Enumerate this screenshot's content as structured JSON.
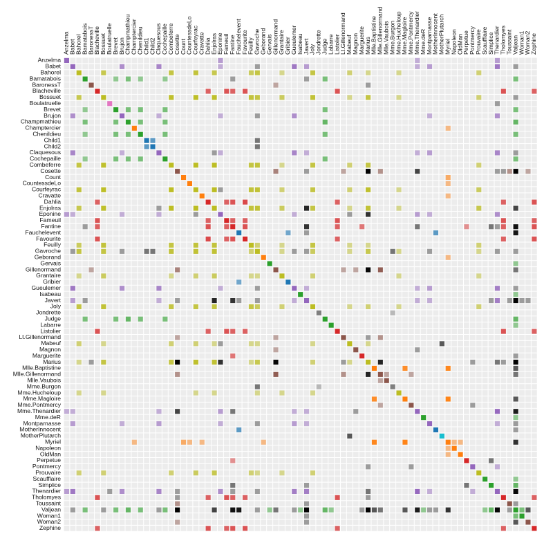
{
  "chart_data": {
    "type": "matrix",
    "categories": [
      "Anzelma",
      "Babet",
      "Bahorel",
      "Bamatabois",
      "BaronessT",
      "Blacheville",
      "Bossuet",
      "Boulatruelle",
      "Brevet",
      "Brujon",
      "Champmathieu",
      "Champtercier",
      "Chenildieu",
      "Child1",
      "Child2",
      "Claquesous",
      "Cochepaille",
      "Combeferre",
      "Cosette",
      "Count",
      "CountessdeLo",
      "Courfeyrac",
      "Cravatte",
      "Dahlia",
      "Enjolras",
      "Eponine",
      "Fameuil",
      "Fantine",
      "Fauchelevent",
      "Favourite",
      "Feuilly",
      "Gavroche",
      "Geborand",
      "Gervais",
      "Gillenormand",
      "Grantaire",
      "Gribier",
      "Gueulemer",
      "Isabeau",
      "Javert",
      "Joly",
      "Jondrette",
      "Judge",
      "Labarre",
      "Listolier",
      "Lt.Gillenormand",
      "Mabeuf",
      "Magnon",
      "Marguerite",
      "Marius",
      "Mlle.Baptistine",
      "Mlle.Gillenormand",
      "Mlle.Vaubois",
      "Mme.Burgon",
      "Mme.Hucheloup",
      "Mme.Magloire",
      "Mme.Pontmercy",
      "Mme.Thenardier",
      "Mme.deR",
      "Montparnasse",
      "MotherInnocent",
      "MotherPlutarch",
      "Myriel",
      "Napoleon",
      "OldMan",
      "Perpetue",
      "Pontmercy",
      "Prouvaire",
      "Scaufflaire",
      "Simplice",
      "Thenardier",
      "Tholomyes",
      "Toussaint",
      "Valjean",
      "Woman1",
      "Woman2",
      "Zephine"
    ],
    "groups": [
      4,
      4,
      8,
      2,
      5,
      3,
      8,
      6,
      2,
      4,
      2,
      1,
      2,
      10,
      10,
      4,
      2,
      8,
      5,
      1,
      1,
      8,
      1,
      3,
      8,
      4,
      3,
      3,
      0,
      3,
      8,
      8,
      1,
      2,
      5,
      8,
      0,
      4,
      2,
      4,
      8,
      7,
      2,
      2,
      3,
      5,
      8,
      5,
      3,
      8,
      1,
      5,
      5,
      7,
      8,
      1,
      5,
      4,
      2,
      4,
      0,
      9,
      1,
      1,
      1,
      3,
      4,
      8,
      2,
      2,
      4,
      3,
      5,
      2,
      2,
      5,
      3
    ],
    "colors": [
      "#1f77b4",
      "#ff7f0e",
      "#2ca02c",
      "#d62728",
      "#9467bd",
      "#8c564b",
      "#e377c2",
      "#7f7f7f",
      "#bcbd22",
      "#17becf",
      "#1f77b4"
    ],
    "cross_color": "#000000",
    "links": [
      [
        "Napoleon",
        "Myriel",
        1
      ],
      [
        "Mlle.Baptistine",
        "Myriel",
        8
      ],
      [
        "Mme.Magloire",
        "Myriel",
        10
      ],
      [
        "Mme.Magloire",
        "Mlle.Baptistine",
        6
      ],
      [
        "CountessdeLo",
        "Myriel",
        1
      ],
      [
        "Geborand",
        "Myriel",
        1
      ],
      [
        "Champtercier",
        "Myriel",
        1
      ],
      [
        "Cravatte",
        "Myriel",
        1
      ],
      [
        "Count",
        "Myriel",
        2
      ],
      [
        "OldMan",
        "Myriel",
        1
      ],
      [
        "Valjean",
        "Labarre",
        1
      ],
      [
        "Valjean",
        "Mme.Magloire",
        3
      ],
      [
        "Valjean",
        "Mlle.Baptistine",
        3
      ],
      [
        "Valjean",
        "Myriel",
        5
      ],
      [
        "Marguerite",
        "Valjean",
        1
      ],
      [
        "Mme.deR",
        "Valjean",
        1
      ],
      [
        "Isabeau",
        "Valjean",
        1
      ],
      [
        "Gervais",
        "Valjean",
        1
      ],
      [
        "Listolier",
        "Tholomyes",
        4
      ],
      [
        "Fameuil",
        "Tholomyes",
        4
      ],
      [
        "Fameuil",
        "Listolier",
        4
      ],
      [
        "Blacheville",
        "Tholomyes",
        4
      ],
      [
        "Blacheville",
        "Listolier",
        4
      ],
      [
        "Blacheville",
        "Fameuil",
        4
      ],
      [
        "Favourite",
        "Tholomyes",
        3
      ],
      [
        "Favourite",
        "Listolier",
        3
      ],
      [
        "Favourite",
        "Fameuil",
        3
      ],
      [
        "Favourite",
        "Blacheville",
        4
      ],
      [
        "Dahlia",
        "Tholomyes",
        3
      ],
      [
        "Dahlia",
        "Listolier",
        3
      ],
      [
        "Dahlia",
        "Fameuil",
        3
      ],
      [
        "Dahlia",
        "Blacheville",
        3
      ],
      [
        "Dahlia",
        "Favourite",
        5
      ],
      [
        "Zephine",
        "Tholomyes",
        3
      ],
      [
        "Zephine",
        "Listolier",
        3
      ],
      [
        "Zephine",
        "Fameuil",
        3
      ],
      [
        "Zephine",
        "Blacheville",
        3
      ],
      [
        "Zephine",
        "Favourite",
        4
      ],
      [
        "Zephine",
        "Dahlia",
        4
      ],
      [
        "Fantine",
        "Tholomyes",
        3
      ],
      [
        "Fantine",
        "Listolier",
        3
      ],
      [
        "Fantine",
        "Fameuil",
        3
      ],
      [
        "Fantine",
        "Blacheville",
        3
      ],
      [
        "Fantine",
        "Favourite",
        4
      ],
      [
        "Fantine",
        "Dahlia",
        4
      ],
      [
        "Fantine",
        "Zephine",
        4
      ],
      [
        "Fantine",
        "Marguerite",
        2
      ],
      [
        "Fantine",
        "Valjean",
        9
      ],
      [
        "Mme.Thenardier",
        "Fantine",
        2
      ],
      [
        "Mme.Thenardier",
        "Valjean",
        7
      ],
      [
        "Thenardier",
        "Mme.Thenardier",
        13
      ],
      [
        "Thenardier",
        "Fantine",
        1
      ],
      [
        "Thenardier",
        "Valjean",
        12
      ],
      [
        "Cosette",
        "Mme.Thenardier",
        4
      ],
      [
        "Cosette",
        "Valjean",
        31
      ],
      [
        "Cosette",
        "Tholomyes",
        1
      ],
      [
        "Cosette",
        "Thenardier",
        1
      ],
      [
        "Javert",
        "Valjean",
        17
      ],
      [
        "Javert",
        "Fantine",
        5
      ],
      [
        "Javert",
        "Thenardier",
        5
      ],
      [
        "Javert",
        "Mme.Thenardier",
        1
      ],
      [
        "Javert",
        "Cosette",
        1
      ],
      [
        "Fauchelevent",
        "Valjean",
        8
      ],
      [
        "Fauchelevent",
        "Javert",
        1
      ],
      [
        "Bamatabois",
        "Fantine",
        1
      ],
      [
        "Bamatabois",
        "Javert",
        1
      ],
      [
        "Bamatabois",
        "Valjean",
        2
      ],
      [
        "Perpetue",
        "Fantine",
        1
      ],
      [
        "Simplice",
        "Perpetue",
        2
      ],
      [
        "Simplice",
        "Valjean",
        3
      ],
      [
        "Simplice",
        "Fantine",
        2
      ],
      [
        "Simplice",
        "Javert",
        1
      ],
      [
        "Scaufflaire",
        "Valjean",
        1
      ],
      [
        "Woman1",
        "Valjean",
        2
      ],
      [
        "Woman1",
        "Javert",
        1
      ],
      [
        "Judge",
        "Valjean",
        3
      ],
      [
        "Judge",
        "Bamatabois",
        2
      ],
      [
        "Champmathieu",
        "Valjean",
        3
      ],
      [
        "Champmathieu",
        "Judge",
        3
      ],
      [
        "Champmathieu",
        "Bamatabois",
        2
      ],
      [
        "Brevet",
        "Judge",
        2
      ],
      [
        "Brevet",
        "Champmathieu",
        2
      ],
      [
        "Brevet",
        "Valjean",
        2
      ],
      [
        "Brevet",
        "Bamatabois",
        1
      ],
      [
        "Chenildieu",
        "Judge",
        2
      ],
      [
        "Chenildieu",
        "Champmathieu",
        2
      ],
      [
        "Chenildieu",
        "Brevet",
        2
      ],
      [
        "Chenildieu",
        "Valjean",
        2
      ],
      [
        "Chenildieu",
        "Bamatabois",
        1
      ],
      [
        "Cochepaille",
        "Judge",
        2
      ],
      [
        "Cochepaille",
        "Champmathieu",
        2
      ],
      [
        "Cochepaille",
        "Brevet",
        2
      ],
      [
        "Cochepaille",
        "Chenildieu",
        2
      ],
      [
        "Cochepaille",
        "Valjean",
        2
      ],
      [
        "Cochepaille",
        "Bamatabois",
        1
      ],
      [
        "Pontmercy",
        "Thenardier",
        1
      ],
      [
        "Boulatruelle",
        "Thenardier",
        1
      ],
      [
        "Eponine",
        "Mme.Thenardier",
        2
      ],
      [
        "Eponine",
        "Thenardier",
        3
      ],
      [
        "Anzelma",
        "Eponine",
        2
      ],
      [
        "Anzelma",
        "Thenardier",
        2
      ],
      [
        "Anzelma",
        "Mme.Thenardier",
        1
      ],
      [
        "Woman2",
        "Valjean",
        3
      ],
      [
        "Woman2",
        "Cosette",
        1
      ],
      [
        "Woman2",
        "Javert",
        1
      ],
      [
        "MotherInnocent",
        "Fauchelevent",
        3
      ],
      [
        "MotherInnocent",
        "Valjean",
        1
      ],
      [
        "Gribier",
        "Fauchelevent",
        2
      ],
      [
        "Mme.Burgon",
        "Jondrette",
        1
      ],
      [
        "Gavroche",
        "Mme.Burgon",
        2
      ],
      [
        "Gavroche",
        "Thenardier",
        1
      ],
      [
        "Gavroche",
        "Javert",
        1
      ],
      [
        "Gavroche",
        "Valjean",
        1
      ],
      [
        "Gillenormand",
        "Cosette",
        3
      ],
      [
        "Gillenormand",
        "Valjean",
        2
      ],
      [
        "Magnon",
        "Gillenormand",
        1
      ],
      [
        "Magnon",
        "Mme.Thenardier",
        1
      ],
      [
        "Mlle.Gillenormand",
        "Gillenormand",
        9
      ],
      [
        "Mlle.Gillenormand",
        "Cosette",
        2
      ],
      [
        "Mlle.Gillenormand",
        "Valjean",
        2
      ],
      [
        "Mme.Pontmercy",
        "Mlle.Gillenormand",
        1
      ],
      [
        "Mme.Pontmercy",
        "Pontmercy",
        1
      ],
      [
        "Mlle.Vaubois",
        "Mlle.Gillenormand",
        1
      ],
      [
        "Lt.Gillenormand",
        "Mlle.Gillenormand",
        2
      ],
      [
        "Lt.Gillenormand",
        "Gillenormand",
        1
      ],
      [
        "Lt.Gillenormand",
        "Cosette",
        1
      ],
      [
        "Marius",
        "Mlle.Gillenormand",
        6
      ],
      [
        "Marius",
        "Gillenormand",
        12
      ],
      [
        "Marius",
        "Pontmercy",
        1
      ],
      [
        "Marius",
        "Lt.Gillenormand",
        1
      ],
      [
        "Marius",
        "Cosette",
        21
      ],
      [
        "Marius",
        "Valjean",
        19
      ],
      [
        "Marius",
        "Tholomyes",
        1
      ],
      [
        "Marius",
        "Thenardier",
        2
      ],
      [
        "Marius",
        "Eponine",
        5
      ],
      [
        "Marius",
        "Gavroche",
        4
      ],
      [
        "BaronessT",
        "Gillenormand",
        1
      ],
      [
        "BaronessT",
        "Marius",
        1
      ],
      [
        "Mabeuf",
        "Marius",
        1
      ],
      [
        "Mabeuf",
        "Eponine",
        1
      ],
      [
        "Mabeuf",
        "Gavroche",
        1
      ],
      [
        "Enjolras",
        "Marius",
        7
      ],
      [
        "Enjolras",
        "Gavroche",
        7
      ],
      [
        "Enjolras",
        "Javert",
        6
      ],
      [
        "Enjolras",
        "Mabeuf",
        1
      ],
      [
        "Enjolras",
        "Valjean",
        4
      ],
      [
        "Combeferre",
        "Enjolras",
        15
      ],
      [
        "Combeferre",
        "Marius",
        5
      ],
      [
        "Combeferre",
        "Gavroche",
        6
      ],
      [
        "Combeferre",
        "Mabeuf",
        2
      ],
      [
        "Prouvaire",
        "Gavroche",
        1
      ],
      [
        "Prouvaire",
        "Enjolras",
        4
      ],
      [
        "Prouvaire",
        "Combeferre",
        2
      ],
      [
        "Feuilly",
        "Gavroche",
        2
      ],
      [
        "Feuilly",
        "Enjolras",
        6
      ],
      [
        "Feuilly",
        "Prouvaire",
        2
      ],
      [
        "Feuilly",
        "Combeferre",
        5
      ],
      [
        "Feuilly",
        "Mabeuf",
        1
      ],
      [
        "Feuilly",
        "Marius",
        1
      ],
      [
        "Courfeyrac",
        "Marius",
        9
      ],
      [
        "Courfeyrac",
        "Enjolras",
        17
      ],
      [
        "Courfeyrac",
        "Combeferre",
        13
      ],
      [
        "Courfeyrac",
        "Gavroche",
        7
      ],
      [
        "Courfeyrac",
        "Mabeuf",
        2
      ],
      [
        "Courfeyrac",
        "Eponine",
        1
      ],
      [
        "Courfeyrac",
        "Feuilly",
        6
      ],
      [
        "Courfeyrac",
        "Prouvaire",
        3
      ],
      [
        "Bahorel",
        "Combeferre",
        5
      ],
      [
        "Bahorel",
        "Gavroche",
        5
      ],
      [
        "Bahorel",
        "Courfeyrac",
        6
      ],
      [
        "Bahorel",
        "Mabeuf",
        2
      ],
      [
        "Bahorel",
        "Enjolras",
        4
      ],
      [
        "Bahorel",
        "Feuilly",
        3
      ],
      [
        "Bahorel",
        "Prouvaire",
        2
      ],
      [
        "Bahorel",
        "Marius",
        1
      ],
      [
        "Bossuet",
        "Marius",
        5
      ],
      [
        "Bossuet",
        "Courfeyrac",
        12
      ],
      [
        "Bossuet",
        "Gavroche",
        5
      ],
      [
        "Bossuet",
        "Bahorel",
        4
      ],
      [
        "Bossuet",
        "Enjolras",
        10
      ],
      [
        "Bossuet",
        "Feuilly",
        6
      ],
      [
        "Bossuet",
        "Prouvaire",
        2
      ],
      [
        "Bossuet",
        "Combeferre",
        9
      ],
      [
        "Bossuet",
        "Mabeuf",
        1
      ],
      [
        "Bossuet",
        "Valjean",
        1
      ],
      [
        "Joly",
        "Bahorel",
        5
      ],
      [
        "Joly",
        "Bossuet",
        7
      ],
      [
        "Joly",
        "Gavroche",
        3
      ],
      [
        "Joly",
        "Courfeyrac",
        5
      ],
      [
        "Joly",
        "Enjolras",
        5
      ],
      [
        "Joly",
        "Feuilly",
        5
      ],
      [
        "Joly",
        "Prouvaire",
        2
      ],
      [
        "Joly",
        "Combeferre",
        5
      ],
      [
        "Joly",
        "Mabeuf",
        1
      ],
      [
        "Joly",
        "Marius",
        2
      ],
      [
        "Grantaire",
        "Bossuet",
        3
      ],
      [
        "Grantaire",
        "Enjolras",
        3
      ],
      [
        "Grantaire",
        "Combeferre",
        1
      ],
      [
        "Grantaire",
        "Courfeyrac",
        2
      ],
      [
        "Grantaire",
        "Joly",
        2
      ],
      [
        "Grantaire",
        "Gavroche",
        1
      ],
      [
        "Grantaire",
        "Bahorel",
        1
      ],
      [
        "Grantaire",
        "Feuilly",
        1
      ],
      [
        "Grantaire",
        "Prouvaire",
        1
      ],
      [
        "MotherPlutarch",
        "Mabeuf",
        3
      ],
      [
        "Gueulemer",
        "Thenardier",
        5
      ],
      [
        "Gueulemer",
        "Valjean",
        1
      ],
      [
        "Gueulemer",
        "Mme.Thenardier",
        1
      ],
      [
        "Gueulemer",
        "Javert",
        1
      ],
      [
        "Gueulemer",
        "Gavroche",
        1
      ],
      [
        "Gueulemer",
        "Eponine",
        1
      ],
      [
        "Babet",
        "Thenardier",
        6
      ],
      [
        "Babet",
        "Gueulemer",
        6
      ],
      [
        "Babet",
        "Valjean",
        1
      ],
      [
        "Babet",
        "Mme.Thenardier",
        1
      ],
      [
        "Babet",
        "Javert",
        2
      ],
      [
        "Babet",
        "Gavroche",
        1
      ],
      [
        "Babet",
        "Eponine",
        1
      ],
      [
        "Claquesous",
        "Thenardier",
        4
      ],
      [
        "Claquesous",
        "Babet",
        4
      ],
      [
        "Claquesous",
        "Gueulemer",
        4
      ],
      [
        "Claquesous",
        "Valjean",
        1
      ],
      [
        "Claquesous",
        "Mme.Thenardier",
        1
      ],
      [
        "Claquesous",
        "Javert",
        1
      ],
      [
        "Claquesous",
        "Eponine",
        1
      ],
      [
        "Claquesous",
        "Enjolras",
        1
      ],
      [
        "Montparnasse",
        "Javert",
        1
      ],
      [
        "Montparnasse",
        "Babet",
        2
      ],
      [
        "Montparnasse",
        "Gueulemer",
        2
      ],
      [
        "Montparnasse",
        "Claquesous",
        2
      ],
      [
        "Montparnasse",
        "Valjean",
        1
      ],
      [
        "Montparnasse",
        "Gavroche",
        1
      ],
      [
        "Montparnasse",
        "Eponine",
        1
      ],
      [
        "Montparnasse",
        "Thenardier",
        1
      ],
      [
        "Toussaint",
        "Cosette",
        2
      ],
      [
        "Toussaint",
        "Javert",
        1
      ],
      [
        "Toussaint",
        "Valjean",
        1
      ],
      [
        "Child1",
        "Gavroche",
        2
      ],
      [
        "Child2",
        "Gavroche",
        2
      ],
      [
        "Child2",
        "Child1",
        3
      ],
      [
        "Brujon",
        "Babet",
        3
      ],
      [
        "Brujon",
        "Gueulemer",
        3
      ],
      [
        "Brujon",
        "Thenardier",
        3
      ],
      [
        "Brujon",
        "Gavroche",
        1
      ],
      [
        "Brujon",
        "Eponine",
        1
      ],
      [
        "Brujon",
        "Claquesous",
        1
      ],
      [
        "Brujon",
        "Montparnasse",
        1
      ],
      [
        "Mme.Hucheloup",
        "Bossuet",
        1
      ],
      [
        "Mme.Hucheloup",
        "Joly",
        1
      ],
      [
        "Mme.Hucheloup",
        "Grantaire",
        1
      ],
      [
        "Mme.Hucheloup",
        "Bahorel",
        1
      ],
      [
        "Mme.Hucheloup",
        "Courfeyrac",
        1
      ],
      [
        "Mme.Hucheloup",
        "Gavroche",
        1
      ],
      [
        "Mme.Hucheloup",
        "Enjolras",
        1
      ]
    ]
  }
}
